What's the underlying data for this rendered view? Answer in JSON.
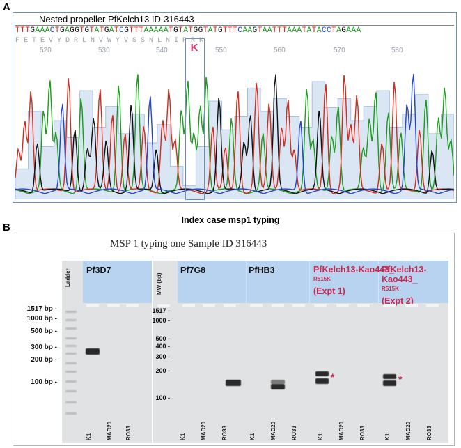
{
  "panel_a": {
    "label": "A",
    "title": "Nested propeller PfKelch13 ID-316443",
    "sequence": "TTTGAAACTGAGGTGTATGATCGTTTAAAAATGTATGGTATGTTTCAAGTAATTTAAATATACCTAGAAA",
    "amino_acids": "F   E   T   E   V   Y   D   R   L       N   V   W   Y   V   S   S   N   L   N   I   P   R   K",
    "positions": [
      "520",
      "530",
      "540",
      "550",
      "560",
      "570",
      "580"
    ],
    "mutation": "K",
    "caption": "Index case msp1 typing"
  },
  "panel_b": {
    "label": "B",
    "title": "MSP 1 typing one Sample ID 316443",
    "ladder_label": "Ladder",
    "mw_label": "MW (bp)",
    "ladder_sizes": [
      "1517 bp -",
      "1000 bp -",
      "500 bp -",
      "300 bp -",
      "200 bp -",
      "100 bp -"
    ],
    "mw_sizes": [
      "1517 -",
      "1000 -",
      "500 -",
      "400 -",
      "300 -",
      "200 -",
      "100 -"
    ],
    "groups": [
      {
        "name": "Pf3D7"
      },
      {
        "name": "Pf7G8"
      },
      {
        "name": "PfHB3"
      },
      {
        "name": "PfKelch13-Kao443_",
        "sup": "R515K",
        "expt": "(Expt 1)"
      },
      {
        "name": "PfKelch13-Kao443_",
        "sup": "R515K",
        "expt": "(Expt 2)"
      }
    ],
    "lanes": [
      "K1",
      "MAD20",
      "RO33"
    ],
    "marker": "*"
  },
  "colors": {
    "accent_red": "#c8284f",
    "header_blue": "#b8d3ef",
    "k_pink": "#e2336b"
  }
}
